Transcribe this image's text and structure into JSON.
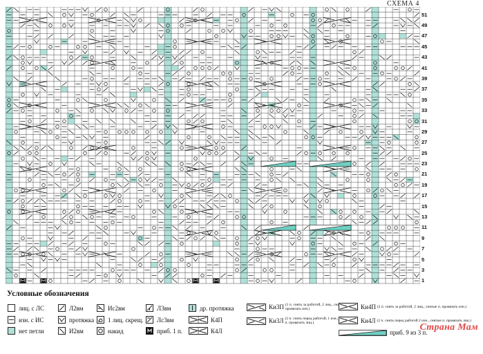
{
  "title": "СХЕМА 4",
  "chart": {
    "columns": 60,
    "rows": 52,
    "row_numbers": [
      51,
      49,
      47,
      45,
      43,
      41,
      39,
      37,
      35,
      33,
      31,
      29,
      27,
      25,
      23,
      21,
      19,
      17,
      15,
      13,
      11,
      9,
      7,
      5,
      3,
      1
    ],
    "stitch_column_teal": [
      0,
      23,
      34,
      44,
      53
    ],
    "cable_bar_rows": [
      23,
      11
    ]
  },
  "legend": {
    "title": "Условные обозначения",
    "items": [
      {
        "icon": "knit-icon",
        "label": "лиц. с ЛС"
      },
      {
        "icon": "purl-icon",
        "label": "изн. с ИС"
      },
      {
        "icon": "no-stitch-icon",
        "label": "нет петли"
      },
      {
        "icon": "left-2tog-icon",
        "label": "Л2вм"
      },
      {
        "icon": "pull-through-icon",
        "label": "протяжка"
      },
      {
        "icon": "right-2tog-icon",
        "label": "И2вм"
      },
      {
        "icon": "purl-2tog-icon",
        "label": "Ис2вм"
      },
      {
        "icon": "crossed-knit-icon",
        "label": "1 лиц. скрещ."
      },
      {
        "icon": "yarn-over-icon",
        "label": "накид"
      },
      {
        "icon": "left-3tog-icon",
        "label": "Л3вм"
      },
      {
        "icon": "left-purl-3tog-icon",
        "label": "Лс3вм"
      },
      {
        "icon": "increase-icon",
        "label": "приб. 1 п."
      },
      {
        "icon": "double-pull-through-icon",
        "label": "др. протяжка"
      },
      {
        "icon": "cable-4-right-icon",
        "label": "К4П"
      },
      {
        "icon": "cable-4-left-icon",
        "label": "К4Л"
      },
      {
        "icon": "cable-ki3p-icon",
        "label": "Ки3П",
        "note": "(1 п. снять за работой, 2 лиц., снятую п. провязать изн.)"
      },
      {
        "icon": "cable-ki3l-icon",
        "label": "Ки3Л",
        "note": "(2 п. снять перед работой, 1 изн., снятые п. провязать лиц.)"
      },
      {
        "icon": "cable-ki4p-icon",
        "label": "Ки4П",
        "note": "(2 п. снять за работой, 2 лиц., снятые п. провязать изн.)"
      },
      {
        "icon": "cable-ki4l-icon",
        "label": "Ки4Л",
        "note": "(2 п. снять перед работой 2 изн., снятые п. провязать лиц.)"
      },
      {
        "icon": "increase-9-from-3-icon",
        "label": "приб. 9 из 3 п."
      }
    ]
  },
  "watermark": "Страна Мам",
  "colors": {
    "teal": "#aee0d8",
    "grid": "#333333",
    "ink": "#111111",
    "watermark": "#e04848"
  }
}
